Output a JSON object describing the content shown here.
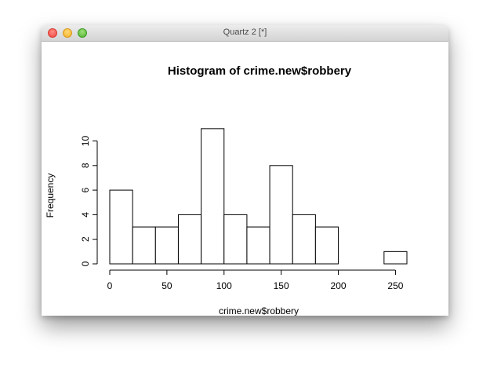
{
  "window": {
    "title": "Quartz 2 [*]"
  },
  "chart_data": {
    "type": "bar",
    "title": "Histogram of crime.new$robbery",
    "xlabel": "crime.new$robbery",
    "ylabel": "Frequency",
    "bin_edges": [
      0,
      20,
      40,
      60,
      80,
      100,
      120,
      140,
      160,
      180,
      200,
      220,
      240,
      260
    ],
    "values": [
      6,
      3,
      3,
      4,
      11,
      4,
      3,
      8,
      4,
      3,
      0,
      0,
      1
    ],
    "xlim": [
      0,
      260
    ],
    "ylim": [
      0,
      11
    ],
    "x_ticks": [
      0,
      50,
      100,
      150,
      200,
      250
    ],
    "y_ticks": [
      0,
      2,
      4,
      6,
      8,
      10
    ],
    "grid": false
  }
}
